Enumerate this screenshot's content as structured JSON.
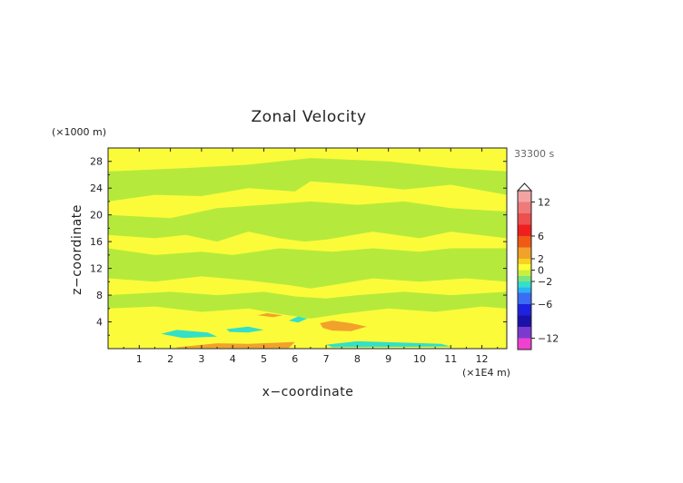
{
  "chart_data": {
    "type": "heatmap",
    "title": "Zonal Velocity",
    "xlabel": "x−coordinate",
    "ylabel": "z−coordinate",
    "x_unit": "(×1E4 m)",
    "y_unit": "(×1000 m)",
    "time_label": "33300 s",
    "xlim": [
      0,
      12.8
    ],
    "ylim": [
      0,
      30
    ],
    "x_ticks": [
      1,
      2,
      3,
      4,
      5,
      6,
      7,
      8,
      9,
      10,
      11,
      12
    ],
    "x_tick_labels": [
      "1",
      "2",
      "3",
      "4",
      "5",
      "6",
      "7",
      "8",
      "9",
      "10",
      "11",
      "12"
    ],
    "y_ticks": [
      4,
      8,
      12,
      16,
      20,
      24,
      28
    ],
    "y_tick_labels": [
      "4",
      "8",
      "12",
      "16",
      "20",
      "24",
      "28"
    ],
    "colorbar": {
      "range": [
        -14,
        14
      ],
      "tick_values": [
        12,
        6,
        2,
        0,
        -2,
        -6,
        -12
      ],
      "tick_labels": [
        "12",
        "6",
        "2",
        "0",
        "−2",
        "−6",
        "−12"
      ],
      "bands": [
        {
          "from": 12,
          "to": 14,
          "color": "#f4a3a3"
        },
        {
          "from": 10,
          "to": 12,
          "color": "#ef7a7a"
        },
        {
          "from": 8,
          "to": 10,
          "color": "#ee4f4f"
        },
        {
          "from": 6,
          "to": 8,
          "color": "#f01f1f"
        },
        {
          "from": 4,
          "to": 6,
          "color": "#f05a14"
        },
        {
          "from": 2,
          "to": 4,
          "color": "#f2a12b"
        },
        {
          "from": 1,
          "to": 2,
          "color": "#f7d11e"
        },
        {
          "from": 0,
          "to": 1,
          "color": "#ffff38"
        },
        {
          "from": -1,
          "to": 0,
          "color": "#c9f03d"
        },
        {
          "from": -2,
          "to": -1,
          "color": "#7ee57a"
        },
        {
          "from": -3,
          "to": -2,
          "color": "#33e0c8"
        },
        {
          "from": -4,
          "to": -3,
          "color": "#2ab4f4"
        },
        {
          "from": -6,
          "to": -4,
          "color": "#3a6cf5"
        },
        {
          "from": -8,
          "to": -6,
          "color": "#1e22e0"
        },
        {
          "from": -10,
          "to": -8,
          "color": "#1a12a8"
        },
        {
          "from": -12,
          "to": -10,
          "color": "#7a3ad0"
        },
        {
          "from": -14,
          "to": -12,
          "color": "#f040d0"
        }
      ]
    },
    "field_colors": {
      "background": "#b5ea3c",
      "positive_weak": "#fbfb3a",
      "positive_strong": "#f2a12b",
      "negative_strong": "#33e0c8"
    },
    "field_regions": [
      {
        "level": "positive_weak",
        "polygon": [
          [
            0,
            26.5
          ],
          [
            2.5,
            27
          ],
          [
            4.5,
            27.5
          ],
          [
            6.5,
            28.5
          ],
          [
            6.5,
            30
          ],
          [
            0,
            30
          ]
        ]
      },
      {
        "level": "positive_weak",
        "polygon": [
          [
            6.5,
            28.5
          ],
          [
            9,
            28
          ],
          [
            11,
            27
          ],
          [
            12.8,
            26.5
          ],
          [
            12.8,
            30
          ],
          [
            6.5,
            30
          ]
        ]
      },
      {
        "level": "positive_weak",
        "polygon": [
          [
            0,
            22
          ],
          [
            1.5,
            23
          ],
          [
            3,
            22.8
          ],
          [
            4.5,
            24
          ],
          [
            6,
            23.5
          ],
          [
            6.5,
            25
          ],
          [
            8,
            24.5
          ],
          [
            9.5,
            23.8
          ],
          [
            11,
            24.5
          ],
          [
            12.8,
            23
          ],
          [
            12.8,
            20.5
          ],
          [
            11,
            21
          ],
          [
            9.5,
            22
          ],
          [
            8,
            21.5
          ],
          [
            6.5,
            22
          ],
          [
            5,
            21.5
          ],
          [
            3.5,
            21
          ],
          [
            2,
            19.5
          ],
          [
            0,
            20
          ]
        ]
      },
      {
        "level": "positive_weak",
        "polygon": [
          [
            0,
            17
          ],
          [
            1.5,
            16.5
          ],
          [
            2.5,
            17
          ],
          [
            3.5,
            16
          ],
          [
            4.5,
            17.5
          ],
          [
            5.5,
            16.5
          ],
          [
            6.3,
            16
          ],
          [
            7,
            16.3
          ],
          [
            8.5,
            17.5
          ],
          [
            10,
            16.5
          ],
          [
            11,
            17.5
          ],
          [
            12.8,
            16.5
          ],
          [
            12.8,
            15
          ],
          [
            11,
            15
          ],
          [
            10,
            14.5
          ],
          [
            8.5,
            15
          ],
          [
            7.2,
            14.5
          ],
          [
            5.5,
            15
          ],
          [
            4,
            14
          ],
          [
            3,
            14.5
          ],
          [
            1.5,
            14
          ],
          [
            0,
            15
          ]
        ]
      },
      {
        "level": "positive_weak",
        "polygon": [
          [
            0,
            10.5
          ],
          [
            1.5,
            10
          ],
          [
            3,
            10.8
          ],
          [
            4.5,
            10.2
          ],
          [
            5.8,
            9.5
          ],
          [
            6.5,
            9
          ],
          [
            7.2,
            9.5
          ],
          [
            8.5,
            10.5
          ],
          [
            10,
            10
          ],
          [
            11.5,
            10.5
          ],
          [
            12.8,
            10
          ],
          [
            12.8,
            8.5
          ],
          [
            11,
            8
          ],
          [
            9.5,
            8.5
          ],
          [
            8,
            8
          ],
          [
            7,
            7.5
          ],
          [
            6,
            7.8
          ],
          [
            5,
            8.5
          ],
          [
            3.5,
            8
          ],
          [
            2,
            8.5
          ],
          [
            0,
            8
          ]
        ]
      },
      {
        "level": "positive_weak",
        "polygon": [
          [
            0,
            6
          ],
          [
            1.5,
            6.3
          ],
          [
            3,
            5.5
          ],
          [
            4.5,
            6
          ],
          [
            5.5,
            5.2
          ],
          [
            6.5,
            4.5
          ],
          [
            7.5,
            5.2
          ],
          [
            9,
            6
          ],
          [
            10.5,
            5.5
          ],
          [
            12,
            6.3
          ],
          [
            12.8,
            6
          ],
          [
            12.8,
            0
          ],
          [
            0,
            0
          ]
        ]
      },
      {
        "level": "positive_strong",
        "polygon": [
          [
            2.2,
            0.2
          ],
          [
            3.5,
            0.8
          ],
          [
            4.5,
            0.7
          ],
          [
            5.5,
            0.9
          ],
          [
            6,
            1
          ],
          [
            5.8,
            0.1
          ],
          [
            2.2,
            0.1
          ]
        ]
      },
      {
        "level": "positive_strong",
        "polygon": [
          [
            6.8,
            3.8
          ],
          [
            7.2,
            4.2
          ],
          [
            7.8,
            3.8
          ],
          [
            8.3,
            3.3
          ],
          [
            7.8,
            2.6
          ],
          [
            7.2,
            2.7
          ],
          [
            6.9,
            3.1
          ]
        ]
      },
      {
        "level": "positive_strong",
        "polygon": [
          [
            4.8,
            5
          ],
          [
            5.1,
            5.3
          ],
          [
            5.6,
            5
          ],
          [
            5.3,
            4.7
          ]
        ]
      },
      {
        "level": "negative_strong",
        "polygon": [
          [
            1.7,
            2.2
          ],
          [
            2.2,
            2.8
          ],
          [
            3.2,
            2.4
          ],
          [
            3.5,
            1.8
          ],
          [
            2.4,
            1.6
          ]
        ]
      },
      {
        "level": "negative_strong",
        "polygon": [
          [
            3.8,
            2.9
          ],
          [
            4.5,
            3.3
          ],
          [
            5,
            2.8
          ],
          [
            4.5,
            2.4
          ],
          [
            3.9,
            2.5
          ]
        ]
      },
      {
        "level": "negative_strong",
        "polygon": [
          [
            7,
            0.6
          ],
          [
            8,
            1.1
          ],
          [
            9.5,
            0.9
          ],
          [
            10.7,
            0.7
          ],
          [
            11,
            0.3
          ],
          [
            7.2,
            0.2
          ]
        ]
      },
      {
        "level": "negative_strong",
        "polygon": [
          [
            5.8,
            4.2
          ],
          [
            6.1,
            4.8
          ],
          [
            6.4,
            4.5
          ],
          [
            6.1,
            3.9
          ]
        ]
      }
    ]
  }
}
